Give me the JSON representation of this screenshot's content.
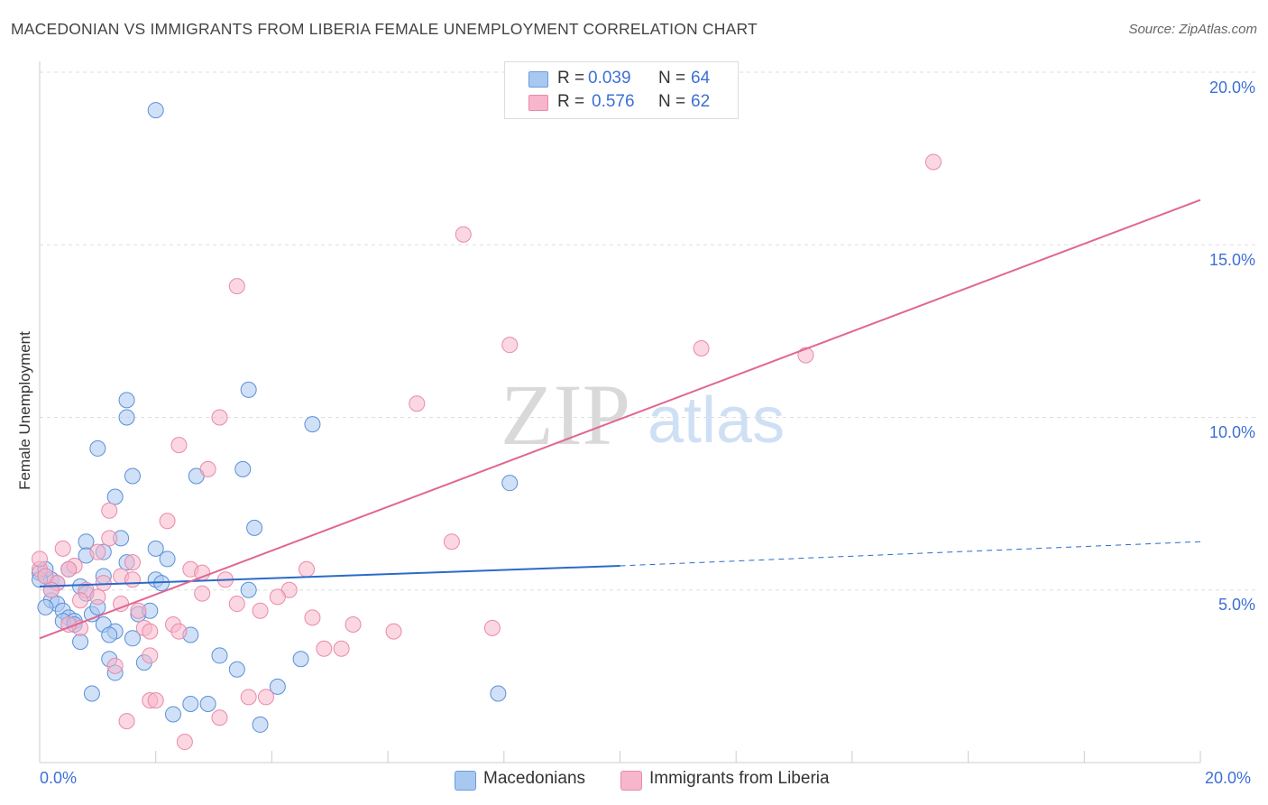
{
  "title": "MACEDONIAN VS IMMIGRANTS FROM LIBERIA FEMALE UNEMPLOYMENT CORRELATION CHART",
  "source": "Source: ZipAtlas.com",
  "watermark": {
    "zip": "ZIP",
    "atlas": "atlas"
  },
  "legend": {
    "row1": {
      "r_label": "R =",
      "r_value": "0.039",
      "n_label": "N =",
      "n_value": "64"
    },
    "row2": {
      "r_label": "R =",
      "r_value": "0.576",
      "n_label": "N =",
      "n_value": "62"
    }
  },
  "colors": {
    "blue_fill": "#a9c8f0",
    "blue_line": "#2a6bc9",
    "pink_fill": "#f7b6cb",
    "pink_line": "#e06693",
    "tick_text": "#3d6fd6"
  },
  "chart_data": {
    "type": "scatter",
    "title": "MACEDONIAN VS IMMIGRANTS FROM LIBERIA FEMALE UNEMPLOYMENT CORRELATION CHART",
    "xlabel": "",
    "ylabel": "Female Unemployment",
    "xlim": [
      0,
      20
    ],
    "ylim": [
      0,
      20
    ],
    "x_tick_labels": [
      "0.0%",
      "20.0%"
    ],
    "y_tick_labels": [
      "5.0%",
      "10.0%",
      "15.0%",
      "20.0%"
    ],
    "y_ticks": [
      5,
      10,
      15,
      20
    ],
    "grid": true,
    "legend_position": "top-center",
    "series": [
      {
        "name": "Macedonians",
        "color": "#a9c8f0",
        "r": 0.039,
        "n": 64,
        "trend": {
          "x": [
            0,
            10
          ],
          "y": [
            5.1,
            5.7
          ],
          "dashed_to": [
            20,
            6.4
          ]
        },
        "points": [
          [
            2.0,
            18.9
          ],
          [
            3.6,
            10.8
          ],
          [
            1.5,
            10.5
          ],
          [
            1.5,
            10.0
          ],
          [
            4.7,
            9.8
          ],
          [
            1.0,
            9.1
          ],
          [
            1.6,
            8.3
          ],
          [
            2.7,
            8.3
          ],
          [
            3.5,
            8.5
          ],
          [
            8.1,
            8.1
          ],
          [
            1.3,
            7.7
          ],
          [
            3.7,
            6.8
          ],
          [
            1.4,
            6.5
          ],
          [
            0.8,
            6.4
          ],
          [
            1.1,
            6.1
          ],
          [
            0.8,
            6.0
          ],
          [
            1.5,
            5.8
          ],
          [
            2.2,
            5.9
          ],
          [
            0.0,
            5.5
          ],
          [
            0.1,
            5.4
          ],
          [
            0.2,
            5.3
          ],
          [
            0.3,
            5.2
          ],
          [
            2.0,
            5.3
          ],
          [
            2.1,
            5.2
          ],
          [
            1.1,
            5.4
          ],
          [
            0.7,
            5.1
          ],
          [
            0.8,
            4.9
          ],
          [
            3.6,
            5.0
          ],
          [
            0.2,
            4.7
          ],
          [
            0.3,
            4.6
          ],
          [
            0.4,
            4.4
          ],
          [
            0.1,
            4.5
          ],
          [
            0.5,
            4.2
          ],
          [
            0.6,
            4.1
          ],
          [
            0.4,
            4.1
          ],
          [
            0.6,
            4.0
          ],
          [
            0.9,
            4.3
          ],
          [
            1.1,
            4.0
          ],
          [
            1.3,
            3.8
          ],
          [
            1.7,
            4.3
          ],
          [
            1.9,
            4.4
          ],
          [
            1.2,
            3.7
          ],
          [
            1.6,
            3.6
          ],
          [
            0.7,
            3.5
          ],
          [
            2.6,
            3.7
          ],
          [
            1.2,
            3.0
          ],
          [
            3.1,
            3.1
          ],
          [
            4.5,
            3.0
          ],
          [
            1.3,
            2.6
          ],
          [
            1.8,
            2.9
          ],
          [
            3.4,
            2.7
          ],
          [
            0.9,
            2.0
          ],
          [
            4.1,
            2.2
          ],
          [
            7.9,
            2.0
          ],
          [
            2.6,
            1.7
          ],
          [
            2.9,
            1.7
          ],
          [
            2.3,
            1.4
          ],
          [
            3.8,
            1.1
          ],
          [
            0.1,
            5.6
          ],
          [
            0.0,
            5.3
          ],
          [
            0.2,
            5.0
          ],
          [
            0.5,
            5.6
          ],
          [
            2.0,
            6.2
          ],
          [
            1.0,
            4.5
          ]
        ]
      },
      {
        "name": "Immigrants from Liberia",
        "color": "#f7b6cb",
        "r": 0.576,
        "n": 62,
        "trend": {
          "x": [
            0,
            20
          ],
          "y": [
            3.6,
            16.3
          ]
        },
        "points": [
          [
            15.4,
            17.4
          ],
          [
            7.3,
            15.3
          ],
          [
            3.4,
            13.8
          ],
          [
            8.1,
            12.1
          ],
          [
            11.4,
            12.0
          ],
          [
            13.2,
            11.8
          ],
          [
            6.5,
            10.4
          ],
          [
            3.1,
            10.0
          ],
          [
            2.4,
            9.2
          ],
          [
            2.9,
            8.5
          ],
          [
            1.2,
            7.3
          ],
          [
            2.2,
            7.0
          ],
          [
            7.1,
            6.4
          ],
          [
            1.2,
            6.5
          ],
          [
            0.4,
            6.2
          ],
          [
            1.0,
            6.1
          ],
          [
            1.6,
            5.8
          ],
          [
            2.6,
            5.6
          ],
          [
            0.6,
            5.7
          ],
          [
            0.5,
            5.6
          ],
          [
            1.4,
            5.4
          ],
          [
            2.8,
            5.5
          ],
          [
            4.6,
            5.6
          ],
          [
            3.2,
            5.3
          ],
          [
            0.0,
            5.6
          ],
          [
            0.3,
            5.2
          ],
          [
            0.2,
            5.0
          ],
          [
            0.8,
            5.0
          ],
          [
            1.6,
            5.3
          ],
          [
            1.1,
            5.2
          ],
          [
            4.3,
            5.0
          ],
          [
            0.7,
            4.7
          ],
          [
            1.0,
            4.8
          ],
          [
            2.8,
            4.9
          ],
          [
            4.1,
            4.8
          ],
          [
            1.4,
            4.6
          ],
          [
            3.4,
            4.6
          ],
          [
            3.8,
            4.4
          ],
          [
            1.7,
            4.4
          ],
          [
            4.7,
            4.2
          ],
          [
            5.4,
            4.0
          ],
          [
            2.3,
            4.0
          ],
          [
            1.8,
            3.9
          ],
          [
            2.4,
            3.8
          ],
          [
            6.1,
            3.8
          ],
          [
            7.8,
            3.9
          ],
          [
            1.9,
            3.8
          ],
          [
            0.7,
            3.9
          ],
          [
            4.9,
            3.3
          ],
          [
            5.2,
            3.3
          ],
          [
            1.9,
            3.1
          ],
          [
            1.3,
            2.8
          ],
          [
            3.6,
            1.9
          ],
          [
            3.9,
            1.9
          ],
          [
            1.9,
            1.8
          ],
          [
            2.0,
            1.8
          ],
          [
            3.1,
            1.3
          ],
          [
            1.5,
            1.2
          ],
          [
            2.5,
            0.6
          ],
          [
            0.0,
            5.9
          ],
          [
            0.1,
            5.4
          ],
          [
            0.5,
            4.0
          ]
        ]
      }
    ]
  },
  "bottom_legend": {
    "series1": "Macedonians",
    "series2": "Immigrants from Liberia"
  }
}
